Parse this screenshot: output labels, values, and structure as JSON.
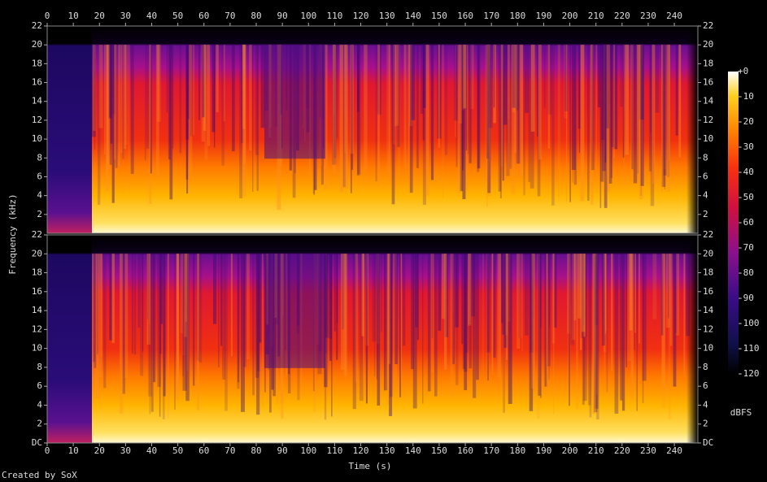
{
  "chart_data": [
    {
      "type": "spectrogram",
      "xlim": [
        0,
        249
      ],
      "xticks": [
        0,
        10,
        20,
        30,
        40,
        50,
        60,
        70,
        80,
        90,
        100,
        110,
        120,
        130,
        140,
        150,
        160,
        170,
        180,
        190,
        200,
        210,
        220,
        230,
        240
      ],
      "ylim": [
        0,
        22
      ],
      "yticks": [
        2,
        4,
        6,
        8,
        10,
        12,
        14,
        16,
        18,
        20,
        22
      ]
    },
    {
      "type": "spectrogram",
      "xlim": [
        0,
        249
      ],
      "xticks": [
        0,
        10,
        20,
        30,
        40,
        50,
        60,
        70,
        80,
        90,
        100,
        110,
        120,
        130,
        140,
        150,
        160,
        170,
        180,
        190,
        200,
        210,
        220,
        230,
        240
      ],
      "ylim": [
        0,
        22
      ],
      "yticks": [
        {
          "value": 0,
          "label": "DC"
        },
        2,
        4,
        6,
        8,
        10,
        12,
        14,
        16,
        18,
        20,
        22
      ]
    }
  ],
  "xlabel": "Time (s)",
  "ylabel": "Frequency (kHz)",
  "colorbar": {
    "label": "dBFS",
    "lim": [
      -120,
      0
    ],
    "ticks": [
      {
        "value": 0,
        "label": "+0"
      },
      -10,
      -20,
      -30,
      -40,
      -50,
      -60,
      -70,
      -80,
      -90,
      -100,
      -110,
      -120
    ]
  },
  "credit": "Created by SoX"
}
